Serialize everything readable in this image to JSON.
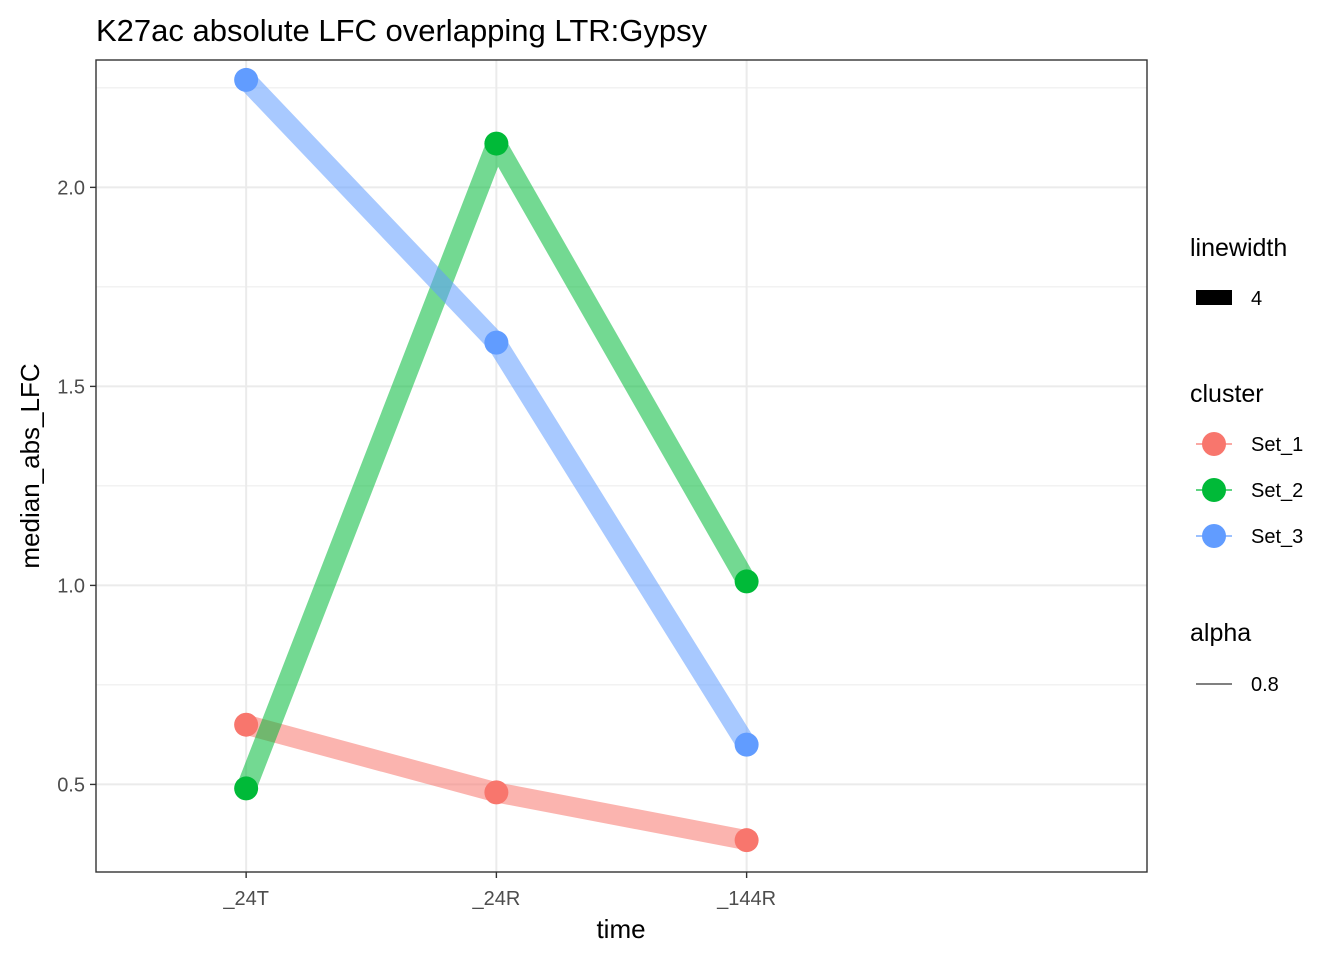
{
  "chart_data": {
    "type": "line",
    "title": "K27ac absolute LFC overlapping LTR:Gypsy",
    "xlabel": "time",
    "ylabel": "median_abs_LFC",
    "categories": [
      "_24T",
      "_24R",
      "_144R"
    ],
    "ylim": [
      0.28,
      2.32
    ],
    "yticks": [
      0.5,
      1.0,
      1.5,
      2.0
    ],
    "ytick_labels": [
      "0.5",
      "1.0",
      "1.5",
      "2.0"
    ],
    "grid": true,
    "series": [
      {
        "name": "Set_1",
        "color": "#F8766D",
        "values": [
          0.65,
          0.48,
          0.36
        ]
      },
      {
        "name": "Set_2",
        "color": "#00BA38",
        "values": [
          0.49,
          2.11,
          1.01
        ]
      },
      {
        "name": "Set_3",
        "color": "#619CFF",
        "values": [
          2.27,
          1.61,
          0.6
        ]
      }
    ],
    "legend": {
      "position": "right",
      "linewidth": {
        "title": "linewidth",
        "label": "4"
      },
      "cluster": {
        "title": "cluster"
      },
      "alpha": {
        "title": "alpha",
        "label": "0.8"
      }
    }
  }
}
